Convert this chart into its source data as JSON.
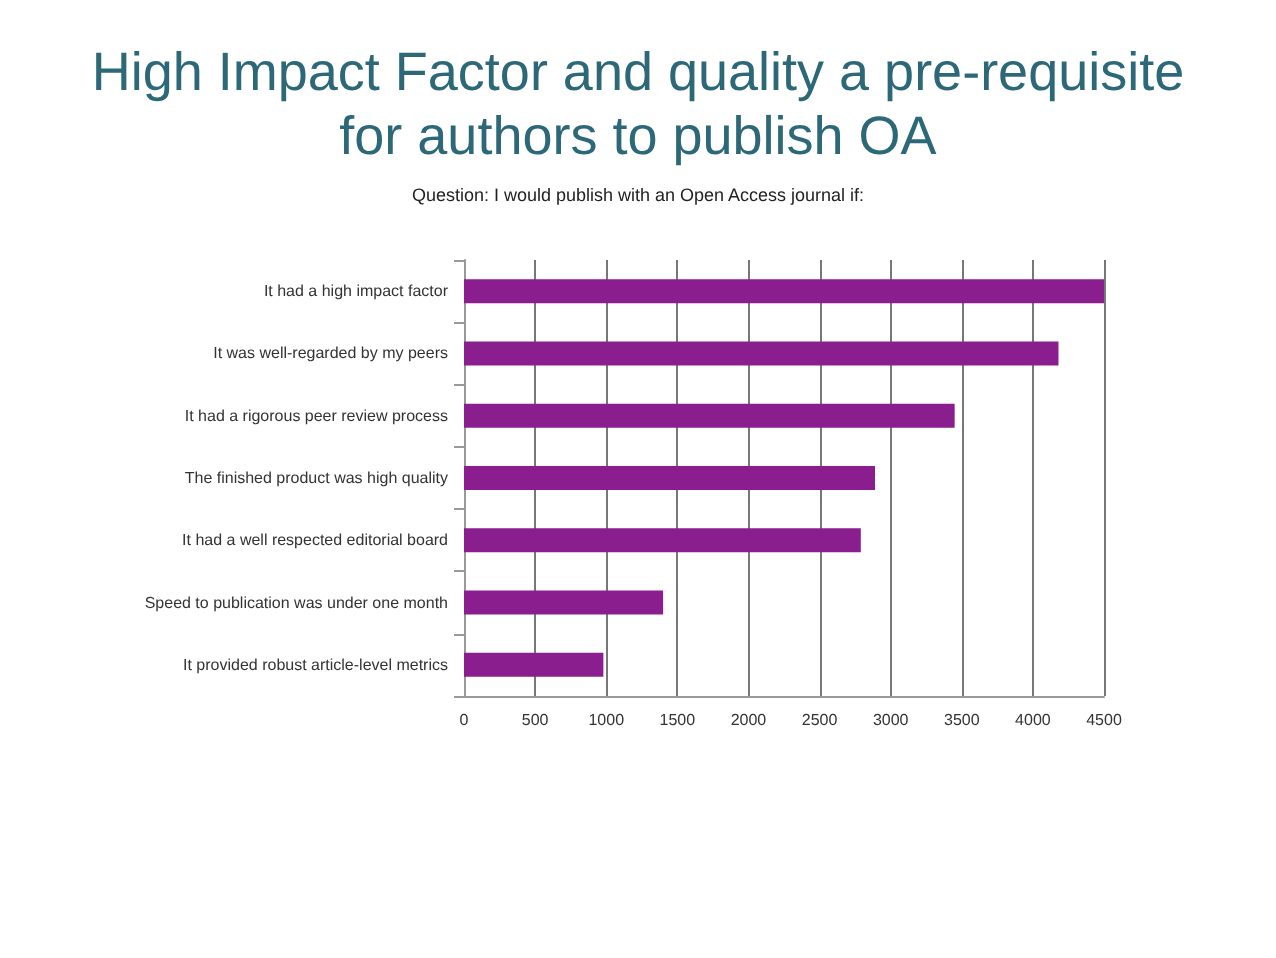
{
  "chart_data": {
    "type": "bar",
    "orientation": "horizontal",
    "title": "High Impact Factor and quality a pre-requisite for authors to publish OA",
    "subtitle": "Question: I would publish with an Open Access journal if:",
    "categories": [
      "It had a high impact factor",
      "It was well-regarded by my peers",
      "It had a rigorous peer review process",
      "The finished product was high quality",
      "It had a well respected editorial board",
      "Speed to publication was under one month",
      "It provided robust article-level metrics"
    ],
    "values": [
      4500,
      4180,
      3450,
      2890,
      2790,
      1400,
      980
    ],
    "color": "#8b1e8f",
    "xlim": [
      0,
      4500
    ],
    "xticks": [
      0,
      500,
      1000,
      1500,
      2000,
      2500,
      3000,
      3500,
      4000,
      4500
    ],
    "grid": "x"
  }
}
